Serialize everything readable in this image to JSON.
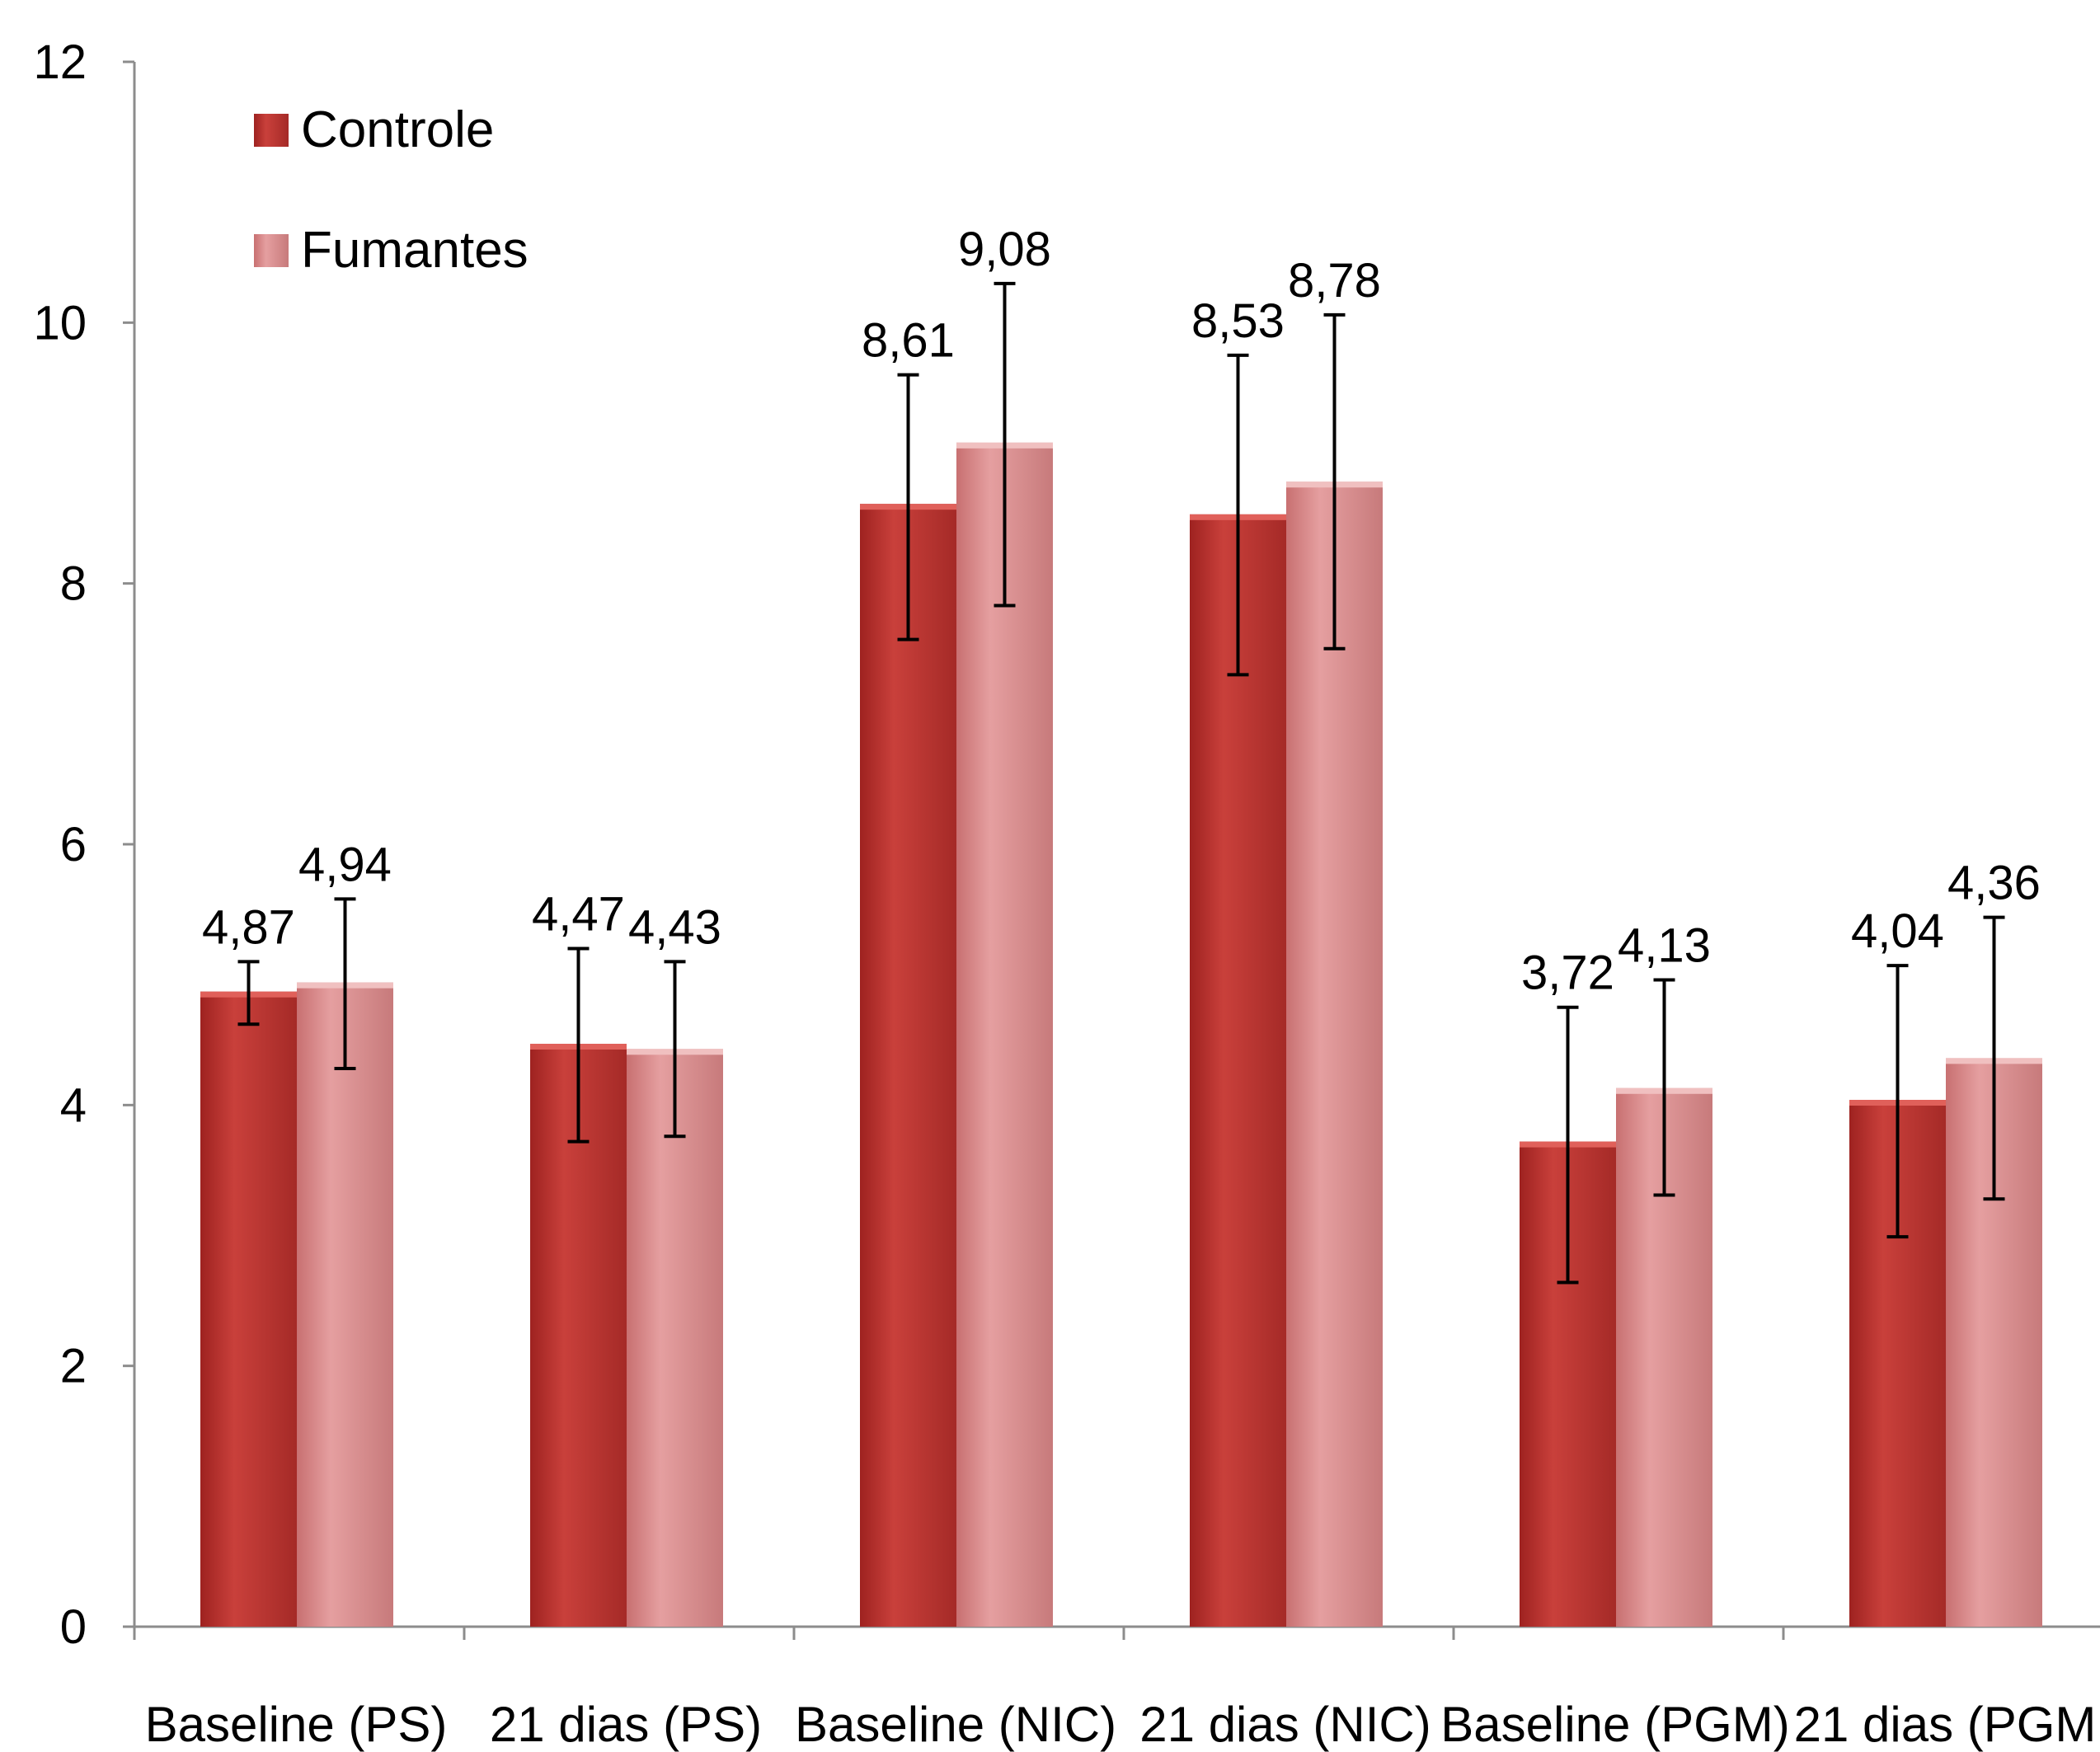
{
  "chart_data": {
    "type": "bar",
    "categories": [
      "Baseline (PS)",
      "21 dias (PS)",
      "Baseline (NIC)",
      "21 dias (NIC)",
      "Baseline (PGM)",
      "21 dias (PGM"
    ],
    "series": [
      {
        "name": "Controle",
        "color": "#c0302c",
        "values": [
          4.87,
          4.47,
          8.61,
          8.53,
          3.72,
          4.04
        ],
        "labels": [
          "4,87",
          "4,47",
          "8,61",
          "8,53",
          "3,72",
          "4,04"
        ],
        "error_low": [
          4.62,
          3.72,
          7.57,
          7.3,
          2.64,
          2.99
        ],
        "error_high": [
          5.1,
          5.2,
          9.6,
          9.75,
          4.75,
          5.07
        ]
      },
      {
        "name": "Fumantes",
        "color": "#d9898a",
        "values": [
          4.94,
          4.43,
          9.08,
          8.78,
          4.13,
          4.36
        ],
        "labels": [
          "4,94",
          "4,43",
          "9,08",
          "8,78",
          "4,13",
          "4,36"
        ],
        "error_low": [
          4.28,
          3.76,
          7.83,
          7.5,
          3.31,
          3.28
        ],
        "error_high": [
          5.58,
          5.1,
          10.3,
          10.06,
          4.96,
          5.44
        ]
      }
    ],
    "yticks": [
      "0",
      "2",
      "4",
      "6",
      "8",
      "10",
      "12"
    ],
    "ylim": [
      0,
      12
    ],
    "xlabel": "",
    "ylabel": "",
    "legend_position": "top-left",
    "grid": false
  }
}
